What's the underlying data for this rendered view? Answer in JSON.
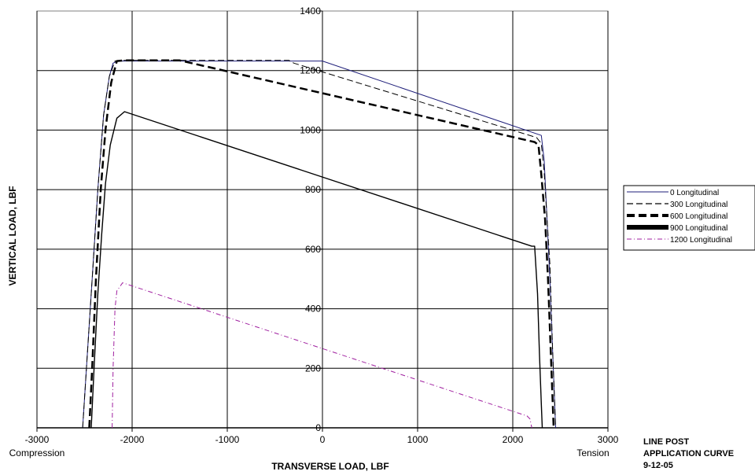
{
  "chart_data": {
    "type": "line",
    "title": "",
    "xlabel": "TRANSVERSE LOAD, LBF",
    "ylabel": "VERTICAL LOAD, LBF",
    "xlim": [
      -3000,
      3000
    ],
    "ylim": [
      0,
      1400
    ],
    "xticks": [
      -3000,
      -2000,
      -1000,
      0,
      1000,
      2000,
      3000
    ],
    "yticks": [
      0,
      200,
      400,
      600,
      800,
      1000,
      1200,
      1400
    ],
    "grid": true,
    "legend_position": "right",
    "annotations": {
      "left_end": "Compression",
      "right_end": "Tension"
    },
    "note_lines": [
      "LINE POST",
      "APPLICATION CURVE",
      "9-12-05"
    ],
    "series": [
      {
        "name": "0 Longitudinal",
        "color": "#1f1f7a",
        "style": "solid-thin",
        "points": [
          [
            -2520,
            0
          ],
          [
            -2480,
            200
          ],
          [
            -2420,
            500
          ],
          [
            -2360,
            800
          ],
          [
            -2300,
            1050
          ],
          [
            -2240,
            1180
          ],
          [
            -2200,
            1225
          ],
          [
            -2150,
            1232
          ],
          [
            -1000,
            1232
          ],
          [
            0,
            1232
          ],
          [
            2300,
            982
          ],
          [
            2330,
            900
          ],
          [
            2360,
            700
          ],
          [
            2390,
            500
          ],
          [
            2420,
            250
          ],
          [
            2450,
            0
          ]
        ]
      },
      {
        "name": "300 Longitudinal",
        "color": "#000000",
        "style": "dash-thin",
        "points": [
          [
            -2520,
            0
          ],
          [
            -2480,
            200
          ],
          [
            -2420,
            500
          ],
          [
            -2360,
            800
          ],
          [
            -2300,
            1050
          ],
          [
            -2240,
            1180
          ],
          [
            -2180,
            1232
          ],
          [
            -2080,
            1234
          ],
          [
            -350,
            1234
          ],
          [
            -300,
            1225
          ],
          [
            2250,
            975
          ],
          [
            2300,
            955
          ],
          [
            2330,
            860
          ],
          [
            2360,
            700
          ],
          [
            2390,
            550
          ],
          [
            2420,
            250
          ],
          [
            2450,
            0
          ]
        ]
      },
      {
        "name": "600 Longitudinal",
        "color": "#000000",
        "style": "dash-thick",
        "points": [
          [
            -2450,
            0
          ],
          [
            -2420,
            200
          ],
          [
            -2380,
            500
          ],
          [
            -2330,
            800
          ],
          [
            -2280,
            1000
          ],
          [
            -2220,
            1160
          ],
          [
            -2160,
            1232
          ],
          [
            -2080,
            1234
          ],
          [
            -1500,
            1234
          ],
          [
            2230,
            960
          ],
          [
            2270,
            950
          ],
          [
            2300,
            850
          ],
          [
            2340,
            700
          ],
          [
            2370,
            500
          ],
          [
            2400,
            250
          ],
          [
            2430,
            0
          ]
        ]
      },
      {
        "name": "900 Longitudinal",
        "color": "#000000",
        "style": "solid",
        "points": [
          [
            -2430,
            0
          ],
          [
            -2400,
            200
          ],
          [
            -2360,
            450
          ],
          [
            -2320,
            650
          ],
          [
            -2280,
            820
          ],
          [
            -2230,
            950
          ],
          [
            -2160,
            1040
          ],
          [
            -2080,
            1062
          ],
          [
            2200,
            610
          ],
          [
            2230,
            610
          ],
          [
            2260,
            450
          ],
          [
            2280,
            250
          ],
          [
            2300,
            80
          ],
          [
            2310,
            0
          ]
        ]
      },
      {
        "name": "1200 Longitudinal",
        "color": "#a020a0",
        "style": "dashdot",
        "points": [
          [
            -2210,
            0
          ],
          [
            -2200,
            200
          ],
          [
            -2180,
            400
          ],
          [
            -2160,
            460
          ],
          [
            -2100,
            487
          ],
          [
            2150,
            40
          ],
          [
            2180,
            30
          ],
          [
            2200,
            0
          ]
        ]
      }
    ]
  }
}
